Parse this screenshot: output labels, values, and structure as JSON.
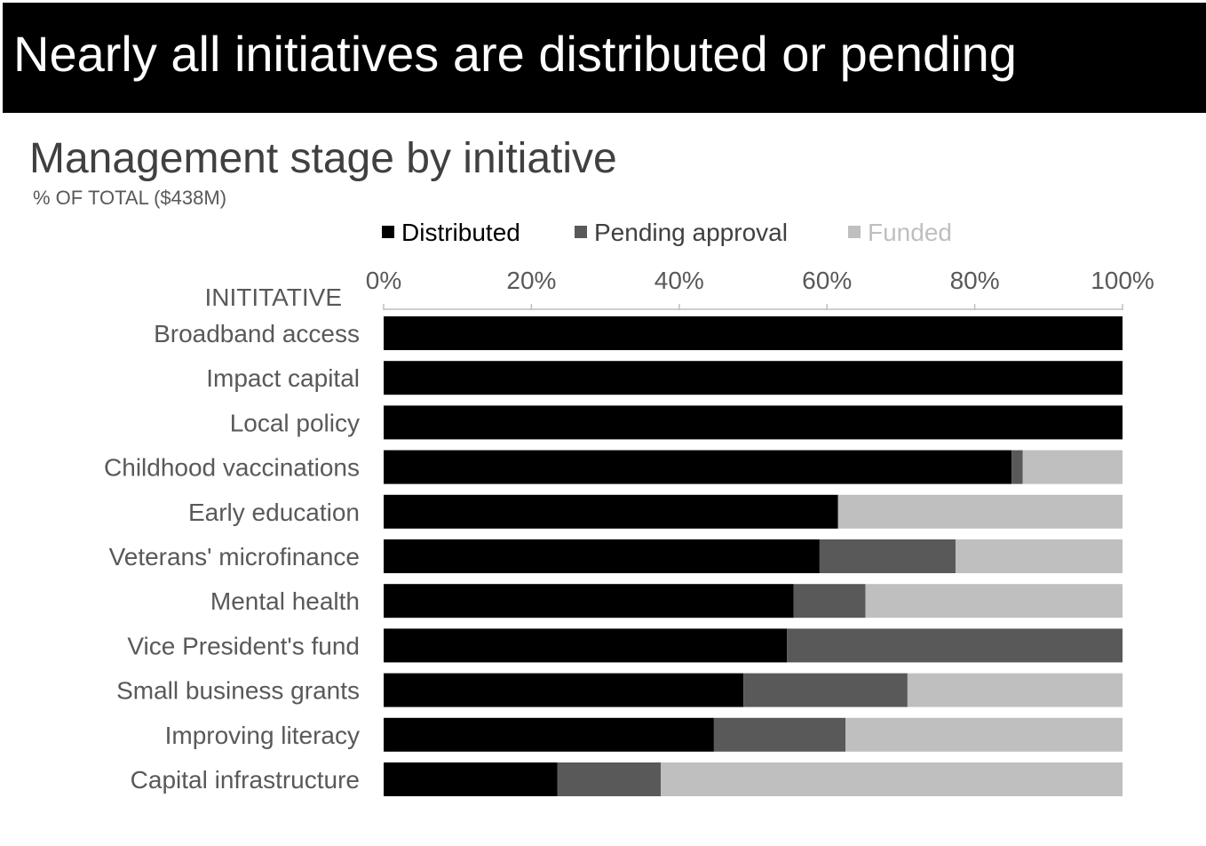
{
  "header": {
    "headline": "Nearly all initiatives are distributed or pending",
    "band_color": "#000000"
  },
  "chart_data": {
    "type": "bar",
    "orientation": "horizontal",
    "stacked": true,
    "title": "Management stage by initiative",
    "subtitle": "% OF TOTAL ($438M)",
    "category_axis_label": "INITITATIVE",
    "categories": [
      "Broadband access",
      "Impact capital",
      "Local policy",
      "Childhood vaccinations",
      "Early education",
      "Veterans' microfinance",
      "Mental health",
      "Vice President's fund",
      "Small business grants",
      "Improving literacy",
      "Capital infrastructure"
    ],
    "series": [
      {
        "name": "Distributed",
        "color": "#000000",
        "values": [
          100,
          100,
          100,
          85,
          61.5,
          59,
          55.5,
          54.6,
          48.7,
          44.7,
          23.5
        ]
      },
      {
        "name": "Pending approval",
        "color": "#595959",
        "values": [
          0,
          0,
          0,
          1.5,
          0,
          18.4,
          9.7,
          45.4,
          22.2,
          17.8,
          14
        ]
      },
      {
        "name": "Funded",
        "color": "#bfbfbf",
        "values": [
          0,
          0,
          0,
          13.5,
          38.5,
          22.6,
          34.8,
          0,
          29.1,
          37.5,
          62.5
        ]
      }
    ],
    "xlim": [
      0,
      100
    ],
    "x_ticks": [
      "0%",
      "20%",
      "40%",
      "60%",
      "80%",
      "100%"
    ],
    "x_axis_position": "top",
    "legend_position": "top",
    "grid": false
  }
}
